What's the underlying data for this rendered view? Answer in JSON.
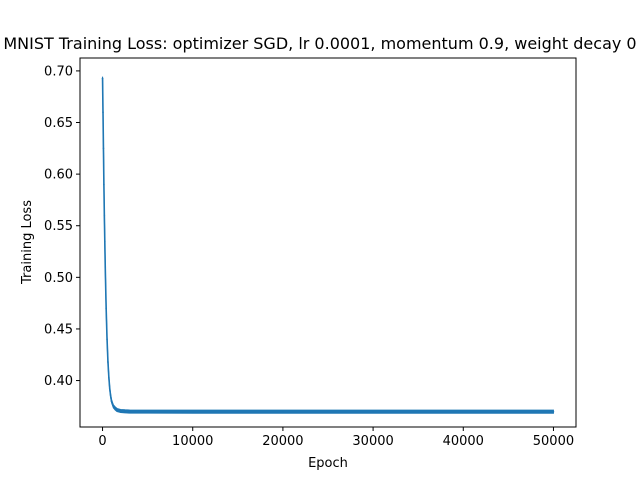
{
  "chart_data": {
    "type": "line",
    "title": "MNIST Training Loss: optimizer SGD, lr 0.0001, momentum 0.9, weight decay 0",
    "xlabel": "Epoch",
    "ylabel": "Training Loss",
    "xlim": [
      -2500,
      52500
    ],
    "ylim": [
      0.355,
      0.7125
    ],
    "xticks": [
      0,
      10000,
      20000,
      30000,
      40000,
      50000
    ],
    "xtick_labels": [
      "0",
      "10000",
      "20000",
      "30000",
      "40000",
      "50000"
    ],
    "yticks": [
      0.4,
      0.45,
      0.5,
      0.55,
      0.6,
      0.65,
      0.7
    ],
    "ytick_labels": [
      "0.40",
      "0.45",
      "0.50",
      "0.55",
      "0.60",
      "0.65",
      "0.70"
    ],
    "grid": false,
    "series": [
      {
        "color": "#1f77b4",
        "x": [
          0,
          50,
          100,
          150,
          200,
          250,
          300,
          400,
          500,
          600,
          700,
          800,
          900,
          1000,
          1200,
          1400,
          1600,
          1800,
          2000,
          2500,
          3000,
          4000,
          5000,
          10000,
          15000,
          20000,
          25000,
          30000,
          35000,
          40000,
          45000,
          50000
        ],
        "y": [
          0.693,
          0.66,
          0.625,
          0.59,
          0.56,
          0.535,
          0.51,
          0.47,
          0.44,
          0.418,
          0.403,
          0.392,
          0.385,
          0.38,
          0.375,
          0.373,
          0.3715,
          0.371,
          0.3705,
          0.3702,
          0.37,
          0.3699,
          0.3699,
          0.3698,
          0.3698,
          0.3698,
          0.3698,
          0.3698,
          0.3698,
          0.3698,
          0.3698,
          0.3698
        ],
        "band_halfwidth": 0.0015
      }
    ]
  }
}
